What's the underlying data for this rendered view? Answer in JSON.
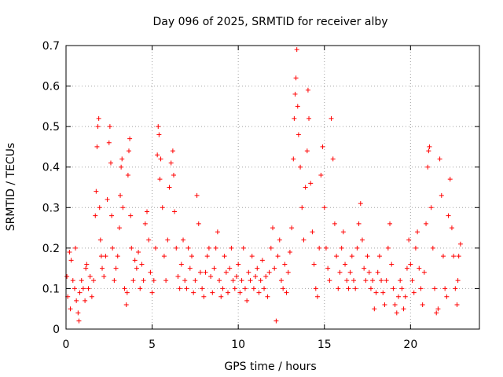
{
  "chart_data": {
    "type": "scatter",
    "title": "Day 096 of 2025, SRMTID for receiver alby",
    "xlabel": "GPS time / hours",
    "ylabel": "SRMTID / TECUs",
    "xlim": [
      0,
      24
    ],
    "ylim": [
      0,
      0.7
    ],
    "xticks": [
      0,
      5,
      10,
      15,
      20
    ],
    "xtick_labels": [
      "0",
      "5",
      "10",
      "15",
      "20"
    ],
    "yticks": [
      0,
      0.1,
      0.2,
      0.3,
      0.4,
      0.5,
      0.6,
      0.7
    ],
    "ytick_labels": [
      "0",
      "0.1",
      "0.2",
      "0.3",
      "0.4",
      "0.5",
      "0.6",
      "0.7"
    ],
    "grid": true,
    "marker": "+",
    "series": [
      {
        "name": "SRMTID",
        "color": "#ff0000",
        "points": [
          [
            0.05,
            0.13
          ],
          [
            0.1,
            0.08
          ],
          [
            0.2,
            0.19
          ],
          [
            0.25,
            0.05
          ],
          [
            0.3,
            0.17
          ],
          [
            0.4,
            0.12
          ],
          [
            0.5,
            0.1
          ],
          [
            0.55,
            0.2
          ],
          [
            0.6,
            0.07
          ],
          [
            0.7,
            0.04
          ],
          [
            0.75,
            0.02
          ],
          [
            0.8,
            0.09
          ],
          [
            0.9,
            0.12
          ],
          [
            1.0,
            0.1
          ],
          [
            1.1,
            0.07
          ],
          [
            1.15,
            0.15
          ],
          [
            1.2,
            0.16
          ],
          [
            1.3,
            0.1
          ],
          [
            1.4,
            0.13
          ],
          [
            1.5,
            0.08
          ],
          [
            1.6,
            0.12
          ],
          [
            1.7,
            0.28
          ],
          [
            1.75,
            0.34
          ],
          [
            1.8,
            0.45
          ],
          [
            1.85,
            0.5
          ],
          [
            1.9,
            0.52
          ],
          [
            1.95,
            0.3
          ],
          [
            2.0,
            0.22
          ],
          [
            2.05,
            0.18
          ],
          [
            2.1,
            0.15
          ],
          [
            2.2,
            0.13
          ],
          [
            2.3,
            0.18
          ],
          [
            2.4,
            0.32
          ],
          [
            2.5,
            0.46
          ],
          [
            2.55,
            0.5
          ],
          [
            2.6,
            0.41
          ],
          [
            2.65,
            0.28
          ],
          [
            2.7,
            0.2
          ],
          [
            2.8,
            0.12
          ],
          [
            2.9,
            0.15
          ],
          [
            3.0,
            0.18
          ],
          [
            3.1,
            0.25
          ],
          [
            3.15,
            0.33
          ],
          [
            3.2,
            0.4
          ],
          [
            3.25,
            0.42
          ],
          [
            3.3,
            0.3
          ],
          [
            3.4,
            0.1
          ],
          [
            3.5,
            0.06
          ],
          [
            3.55,
            0.09
          ],
          [
            3.6,
            0.38
          ],
          [
            3.65,
            0.44
          ],
          [
            3.7,
            0.47
          ],
          [
            3.75,
            0.28
          ],
          [
            3.8,
            0.2
          ],
          [
            3.9,
            0.12
          ],
          [
            4.0,
            0.17
          ],
          [
            4.1,
            0.15
          ],
          [
            4.2,
            0.19
          ],
          [
            4.3,
            0.1
          ],
          [
            4.4,
            0.16
          ],
          [
            4.5,
            0.12
          ],
          [
            4.6,
            0.26
          ],
          [
            4.7,
            0.29
          ],
          [
            4.8,
            0.22
          ],
          [
            4.9,
            0.14
          ],
          [
            5.0,
            0.09
          ],
          [
            5.1,
            0.12
          ],
          [
            5.2,
            0.2
          ],
          [
            5.3,
            0.43
          ],
          [
            5.35,
            0.5
          ],
          [
            5.4,
            0.48
          ],
          [
            5.45,
            0.37
          ],
          [
            5.5,
            0.42
          ],
          [
            5.6,
            0.3
          ],
          [
            5.7,
            0.18
          ],
          [
            5.8,
            0.12
          ],
          [
            5.9,
            0.22
          ],
          [
            6.0,
            0.35
          ],
          [
            6.1,
            0.41
          ],
          [
            6.2,
            0.44
          ],
          [
            6.25,
            0.38
          ],
          [
            6.3,
            0.29
          ],
          [
            6.4,
            0.2
          ],
          [
            6.5,
            0.13
          ],
          [
            6.6,
            0.1
          ],
          [
            6.7,
            0.16
          ],
          [
            6.8,
            0.22
          ],
          [
            6.9,
            0.12
          ],
          [
            7.0,
            0.1
          ],
          [
            7.1,
            0.2
          ],
          [
            7.2,
            0.15
          ],
          [
            7.3,
            0.18
          ],
          [
            7.4,
            0.09
          ],
          [
            7.5,
            0.12
          ],
          [
            7.6,
            0.33
          ],
          [
            7.7,
            0.26
          ],
          [
            7.8,
            0.14
          ],
          [
            7.9,
            0.1
          ],
          [
            8.0,
            0.08
          ],
          [
            8.1,
            0.14
          ],
          [
            8.2,
            0.18
          ],
          [
            8.3,
            0.2
          ],
          [
            8.4,
            0.13
          ],
          [
            8.5,
            0.09
          ],
          [
            8.6,
            0.15
          ],
          [
            8.7,
            0.2
          ],
          [
            8.8,
            0.24
          ],
          [
            8.9,
            0.12
          ],
          [
            9.0,
            0.08
          ],
          [
            9.1,
            0.1
          ],
          [
            9.2,
            0.18
          ],
          [
            9.3,
            0.14
          ],
          [
            9.4,
            0.09
          ],
          [
            9.5,
            0.15
          ],
          [
            9.6,
            0.2
          ],
          [
            9.7,
            0.12
          ],
          [
            9.8,
            0.1
          ],
          [
            9.9,
            0.13
          ],
          [
            10.0,
            0.16
          ],
          [
            10.1,
            0.09
          ],
          [
            10.2,
            0.12
          ],
          [
            10.3,
            0.2
          ],
          [
            10.4,
            0.1
          ],
          [
            10.5,
            0.07
          ],
          [
            10.6,
            0.14
          ],
          [
            10.7,
            0.12
          ],
          [
            10.8,
            0.18
          ],
          [
            10.9,
            0.1
          ],
          [
            11.0,
            0.13
          ],
          [
            11.1,
            0.15
          ],
          [
            11.2,
            0.09
          ],
          [
            11.3,
            0.12
          ],
          [
            11.4,
            0.17
          ],
          [
            11.5,
            0.1
          ],
          [
            11.6,
            0.13
          ],
          [
            11.7,
            0.08
          ],
          [
            11.8,
            0.14
          ],
          [
            11.9,
            0.2
          ],
          [
            12.0,
            0.25
          ],
          [
            12.1,
            0.15
          ],
          [
            12.2,
            0.02
          ],
          [
            12.3,
            0.18
          ],
          [
            12.4,
            0.22
          ],
          [
            12.5,
            0.12
          ],
          [
            12.6,
            0.1
          ],
          [
            12.7,
            0.16
          ],
          [
            12.8,
            0.09
          ],
          [
            12.9,
            0.14
          ],
          [
            13.0,
            0.19
          ],
          [
            13.1,
            0.25
          ],
          [
            13.2,
            0.42
          ],
          [
            13.25,
            0.52
          ],
          [
            13.3,
            0.58
          ],
          [
            13.35,
            0.62
          ],
          [
            13.4,
            0.69
          ],
          [
            13.45,
            0.55
          ],
          [
            13.5,
            0.48
          ],
          [
            13.6,
            0.4
          ],
          [
            13.7,
            0.3
          ],
          [
            13.8,
            0.22
          ],
          [
            13.9,
            0.35
          ],
          [
            14.0,
            0.44
          ],
          [
            14.05,
            0.59
          ],
          [
            14.1,
            0.52
          ],
          [
            14.2,
            0.36
          ],
          [
            14.3,
            0.24
          ],
          [
            14.4,
            0.16
          ],
          [
            14.5,
            0.1
          ],
          [
            14.6,
            0.08
          ],
          [
            14.7,
            0.2
          ],
          [
            14.8,
            0.38
          ],
          [
            14.9,
            0.45
          ],
          [
            15.0,
            0.3
          ],
          [
            15.1,
            0.2
          ],
          [
            15.2,
            0.15
          ],
          [
            15.3,
            0.12
          ],
          [
            15.4,
            0.52
          ],
          [
            15.5,
            0.42
          ],
          [
            15.6,
            0.26
          ],
          [
            15.7,
            0.18
          ],
          [
            15.8,
            0.1
          ],
          [
            15.9,
            0.14
          ],
          [
            16.0,
            0.2
          ],
          [
            16.1,
            0.24
          ],
          [
            16.2,
            0.16
          ],
          [
            16.3,
            0.12
          ],
          [
            16.4,
            0.1
          ],
          [
            16.5,
            0.14
          ],
          [
            16.6,
            0.18
          ],
          [
            16.7,
            0.12
          ],
          [
            16.8,
            0.1
          ],
          [
            16.9,
            0.2
          ],
          [
            17.0,
            0.26
          ],
          [
            17.1,
            0.31
          ],
          [
            17.2,
            0.22
          ],
          [
            17.3,
            0.15
          ],
          [
            17.4,
            0.12
          ],
          [
            17.5,
            0.18
          ],
          [
            17.6,
            0.14
          ],
          [
            17.7,
            0.1
          ],
          [
            17.8,
            0.12
          ],
          [
            17.9,
            0.05
          ],
          [
            18.0,
            0.09
          ],
          [
            18.1,
            0.14
          ],
          [
            18.2,
            0.18
          ],
          [
            18.3,
            0.12
          ],
          [
            18.4,
            0.09
          ],
          [
            18.5,
            0.06
          ],
          [
            18.6,
            0.12
          ],
          [
            18.7,
            0.2
          ],
          [
            18.8,
            0.26
          ],
          [
            18.9,
            0.16
          ],
          [
            19.0,
            0.1
          ],
          [
            19.1,
            0.06
          ],
          [
            19.2,
            0.04
          ],
          [
            19.3,
            0.08
          ],
          [
            19.4,
            0.12
          ],
          [
            19.5,
            0.1
          ],
          [
            19.6,
            0.05
          ],
          [
            19.7,
            0.08
          ],
          [
            19.8,
            0.15
          ],
          [
            19.9,
            0.22
          ],
          [
            20.0,
            0.16
          ],
          [
            20.1,
            0.12
          ],
          [
            20.2,
            0.09
          ],
          [
            20.3,
            0.2
          ],
          [
            20.4,
            0.24
          ],
          [
            20.5,
            0.15
          ],
          [
            20.6,
            0.1
          ],
          [
            20.7,
            0.06
          ],
          [
            20.8,
            0.14
          ],
          [
            20.9,
            0.26
          ],
          [
            21.0,
            0.4
          ],
          [
            21.05,
            0.44
          ],
          [
            21.1,
            0.45
          ],
          [
            21.2,
            0.3
          ],
          [
            21.3,
            0.2
          ],
          [
            21.4,
            0.1
          ],
          [
            21.5,
            0.04
          ],
          [
            21.6,
            0.05
          ],
          [
            21.7,
            0.42
          ],
          [
            21.8,
            0.33
          ],
          [
            21.9,
            0.18
          ],
          [
            22.0,
            0.1
          ],
          [
            22.1,
            0.08
          ],
          [
            22.2,
            0.28
          ],
          [
            22.3,
            0.37
          ],
          [
            22.4,
            0.25
          ],
          [
            22.5,
            0.18
          ],
          [
            22.6,
            0.1
          ],
          [
            22.7,
            0.06
          ],
          [
            22.75,
            0.12
          ],
          [
            22.8,
            0.18
          ],
          [
            22.9,
            0.21
          ]
        ]
      }
    ]
  }
}
